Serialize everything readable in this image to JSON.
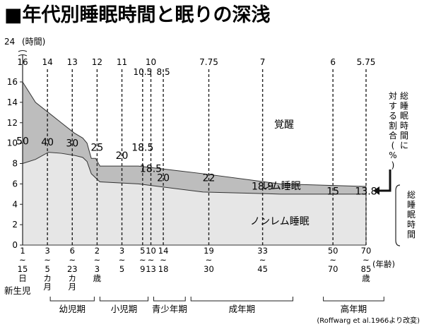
{
  "title": "■年代別睡眠時間と眠りの深浅",
  "chart_data": {
    "type": "area",
    "y_axis": {
      "ticks": [
        0,
        2,
        4,
        6,
        8,
        10,
        12,
        14,
        16
      ],
      "top_value": "24",
      "top_unit": "(時間)",
      "ylim": [
        0,
        16
      ]
    },
    "zones": {
      "awake": "覚醒",
      "rem": "レム睡眠",
      "nonrem": "ノンレム睡眠"
    },
    "right_label_top": "総睡眠時間に対する割合(%)",
    "right_label_bottom": "総睡眠時間",
    "age_unit": "(年齢)",
    "x_points": [
      {
        "age": 0,
        "total": 16,
        "nonrem": 8.0
      },
      {
        "age": 3,
        "total": 14,
        "nonrem": 8.4
      },
      {
        "age": 6,
        "total": 13,
        "nonrem": 9.1
      },
      {
        "age": 9,
        "total": 12,
        "nonrem": 9.0
      },
      {
        "age": 12,
        "total": 11,
        "nonrem": 8.8
      },
      {
        "age": 14,
        "total": 10.5,
        "nonrem": 8.6
      },
      {
        "age": 15,
        "total": 10,
        "nonrem": 8.2
      },
      {
        "age": 16,
        "total": 8.5,
        "nonrem": 7.0
      },
      {
        "age": 17,
        "total": 8.5,
        "nonrem": 6.6
      },
      {
        "age": 18,
        "total": 7.75,
        "nonrem": 6.2
      },
      {
        "age": 27,
        "total": 7.75,
        "nonrem": 6.0
      },
      {
        "age": 42,
        "total": 7,
        "nonrem": 5.2
      },
      {
        "age": 60,
        "total": 6,
        "nonrem": 5.0
      },
      {
        "age": 80,
        "total": 5.75,
        "nonrem": 5.0
      }
    ],
    "total_hours_labels": [
      {
        "age": 0,
        "text": "16"
      },
      {
        "age": 6,
        "text": "14"
      },
      {
        "age": 12,
        "text": "13"
      },
      {
        "age": 18,
        "text": "12"
      },
      {
        "age": 24,
        "text": "11"
      },
      {
        "age": 29,
        "text": "10.5"
      },
      {
        "age": 31,
        "text": "10"
      },
      {
        "age": 34,
        "text": "8.5"
      },
      {
        "age": 45,
        "text": "7.75"
      },
      {
        "age": 58,
        "text": "7"
      },
      {
        "age": 75,
        "text": "6"
      },
      {
        "age": 83,
        "text": "5.75"
      }
    ],
    "rem_percent_labels": [
      {
        "x": 0,
        "y": 10.2,
        "text": "50"
      },
      {
        "x": 6,
        "y": 10.1,
        "text": "40"
      },
      {
        "x": 12,
        "y": 10.0,
        "text": "30"
      },
      {
        "x": 18,
        "y": 9.6,
        "text": "25"
      },
      {
        "x": 24,
        "y": 8.8,
        "text": "20"
      },
      {
        "x": 29,
        "y": 9.6,
        "text": "18.5"
      },
      {
        "x": 31,
        "y": 7.5,
        "text": "18.5"
      },
      {
        "x": 34,
        "y": 6.6,
        "text": "20"
      },
      {
        "x": 45,
        "y": 6.6,
        "text": "22"
      },
      {
        "x": 58,
        "y": 5.8,
        "text": "18.9"
      },
      {
        "x": 75,
        "y": 5.3,
        "text": "15"
      },
      {
        "x": 83,
        "y": 5.3,
        "text": "13.8"
      }
    ],
    "age_ticks": [
      {
        "pos": 0,
        "top": "1",
        "bottom": "15",
        "suffix": "日"
      },
      {
        "pos": 6,
        "top": "3",
        "bottom": "5",
        "suffix": "カ月"
      },
      {
        "pos": 12,
        "top": "6",
        "bottom": "23",
        "suffix": "カ月"
      },
      {
        "pos": 18,
        "top": "2",
        "bottom": "3",
        "suffix": "歳"
      },
      {
        "pos": 24,
        "top": "3",
        "bottom": "5",
        "suffix": ""
      },
      {
        "pos": 29,
        "top": "5",
        "bottom": "9",
        "suffix": ""
      },
      {
        "pos": 31,
        "top": "10",
        "bottom": "13",
        "suffix": ""
      },
      {
        "pos": 34,
        "top": "14",
        "bottom": "18",
        "suffix": ""
      },
      {
        "pos": 45,
        "top": "19",
        "bottom": "30",
        "suffix": ""
      },
      {
        "pos": 58,
        "top": "33",
        "bottom": "45",
        "suffix": ""
      },
      {
        "pos": 75,
        "top": "50",
        "bottom": "70",
        "suffix": ""
      },
      {
        "pos": 83,
        "top": "70",
        "bottom": "85",
        "suffix": "歳"
      }
    ],
    "groups": [
      {
        "label": "新生児",
        "from": 0,
        "to": 0
      },
      {
        "label": "幼児期",
        "from": 6,
        "to": 18
      },
      {
        "label": "小児期",
        "from": 18,
        "to": 31
      },
      {
        "label": "青少年期",
        "from": 31,
        "to": 40
      },
      {
        "label": "成年期",
        "from": 40,
        "to": 66
      },
      {
        "label": "高年期",
        "from": 72,
        "to": 88
      }
    ],
    "source": "(Roffwarg et al.1966より改変)"
  }
}
